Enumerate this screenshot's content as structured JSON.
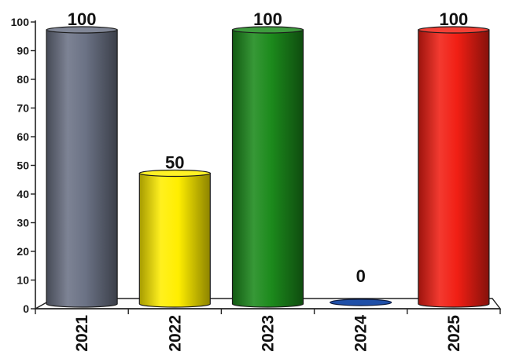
{
  "chart_data": {
    "type": "bar",
    "style": "3d-cylinder",
    "categories": [
      "2021",
      "2022",
      "2023",
      "2024",
      "2025"
    ],
    "values": [
      100,
      50,
      100,
      0,
      100
    ],
    "data_labels": [
      "100",
      "50",
      "100",
      "0",
      "100"
    ],
    "colors": [
      "#6b7285",
      "#ffee00",
      "#1c8a1c",
      "#1f4fa8",
      "#f11f14"
    ],
    "ylim": [
      0,
      100
    ],
    "yticks": [
      0,
      10,
      20,
      30,
      40,
      50,
      60,
      70,
      80,
      90,
      100
    ],
    "ytick_labels": [
      "0",
      "10",
      "20",
      "30",
      "40",
      "50",
      "60",
      "70",
      "80",
      "90",
      "100"
    ],
    "grid": false,
    "legend": "none"
  }
}
